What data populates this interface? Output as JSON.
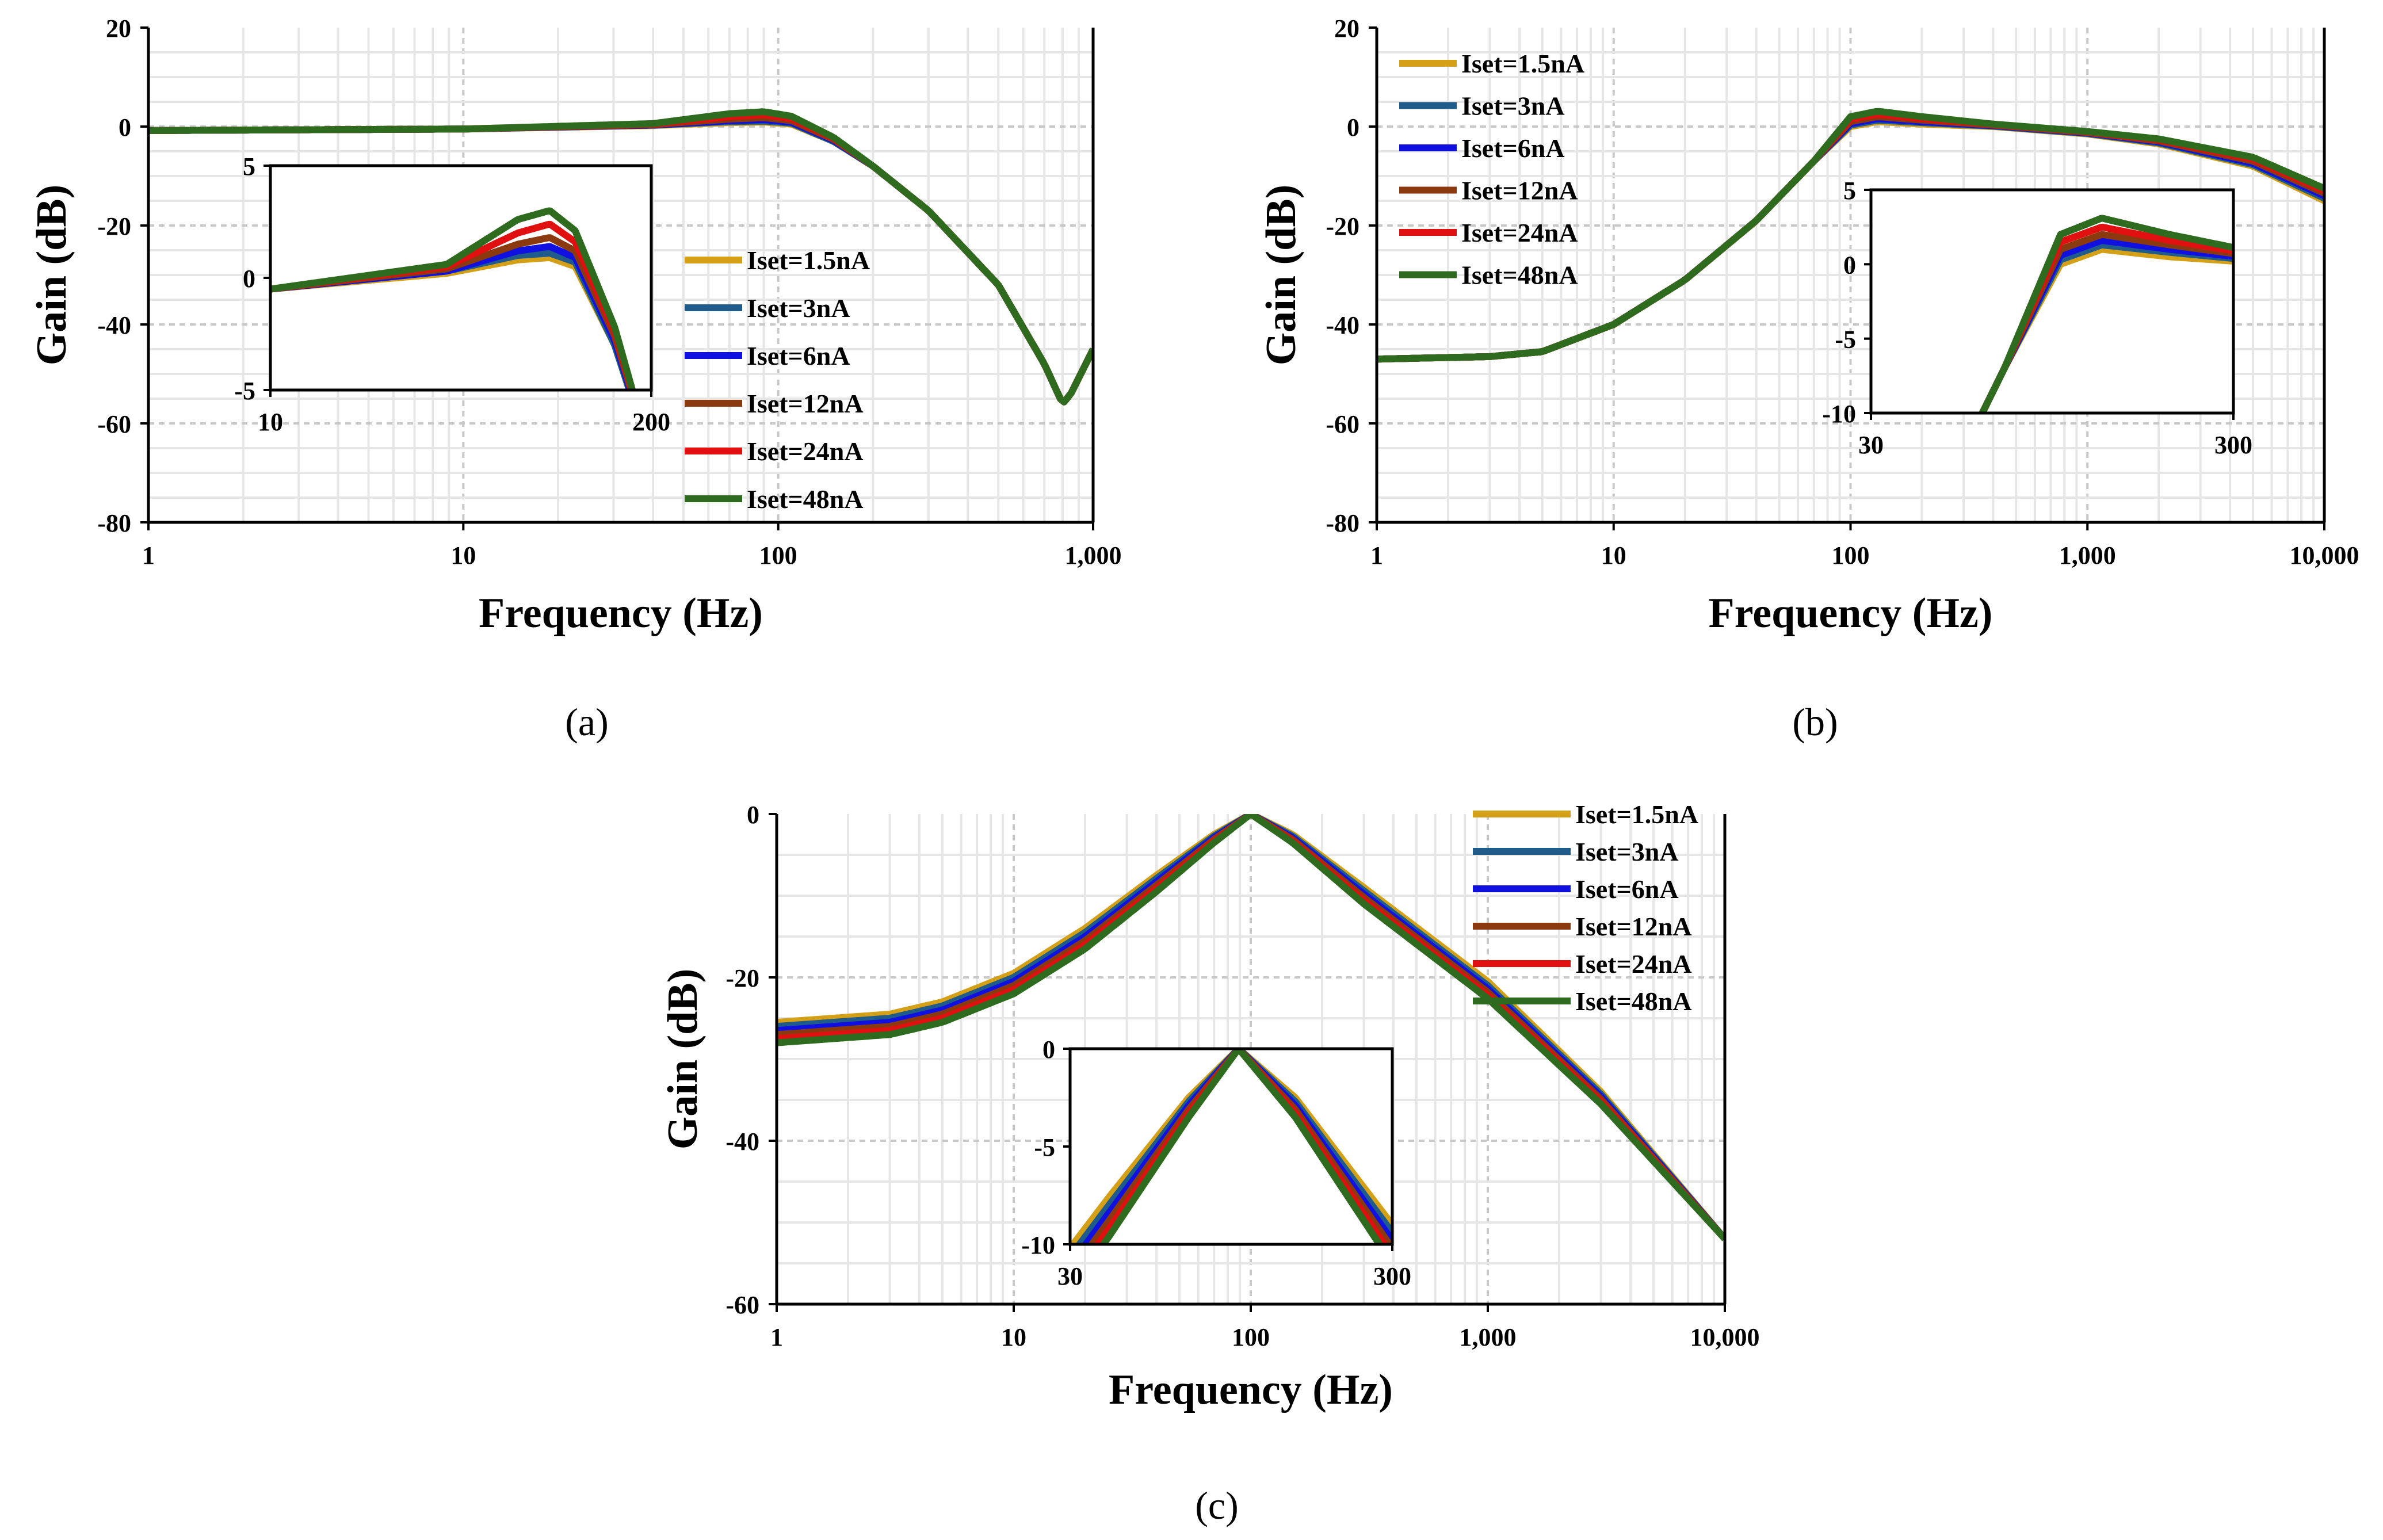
{
  "figure_colors": {
    "grid_major": "#c8c8c8",
    "grid_minor": "#e6e6e6",
    "frame": "#000000"
  },
  "series_legend": [
    {
      "name": "Iset=1.5nA",
      "color": "#D4A017"
    },
    {
      "name": "Iset=3nA",
      "color": "#1F5C8B"
    },
    {
      "name": "Iset=6nA",
      "color": "#1010E0"
    },
    {
      "name": "Iset=12nA",
      "color": "#8B3A10"
    },
    {
      "name": "Iset=24nA",
      "color": "#E01010"
    },
    {
      "name": "Iset=48nA",
      "color": "#2E6B1E"
    }
  ],
  "panel_labels": {
    "a": "(a)",
    "b": "(b)",
    "c": "(c)"
  },
  "chart_data": [
    {
      "id": "a",
      "type": "line",
      "xscale": "log",
      "xlabel": "Frequency (Hz)",
      "ylabel": "Gain (dB)",
      "xlim": [
        1,
        1000
      ],
      "ylim": [
        -80,
        20
      ],
      "xticks": [
        1,
        10,
        100,
        1000
      ],
      "xtick_labels": [
        "1",
        "10",
        "100",
        "1,000"
      ],
      "yticks": [
        20,
        0,
        -20,
        -40,
        -60,
        -80
      ],
      "ytick_labels": [
        "20",
        "0",
        "-20",
        "-40",
        "-60",
        "-80"
      ],
      "legend_position": "lower-right",
      "series": [
        {
          "name": "Iset=1.5nA",
          "x": [
            1,
            10,
            40,
            70,
            90,
            110,
            150,
            200,
            300,
            500,
            700,
            800,
            850,
            1000
          ],
          "y": [
            -0.8,
            -0.5,
            0.2,
            0.8,
            0.9,
            0.5,
            -3,
            -8,
            -17,
            -32,
            -48,
            -56,
            -54,
            -45
          ]
        },
        {
          "name": "Iset=3nA",
          "x": [
            1,
            10,
            40,
            70,
            90,
            110,
            150,
            200,
            300,
            500,
            700,
            800,
            850,
            1000
          ],
          "y": [
            -0.8,
            -0.5,
            0.3,
            1.0,
            1.1,
            0.7,
            -3,
            -8,
            -17,
            -32,
            -48,
            -56,
            -54,
            -45
          ]
        },
        {
          "name": "Iset=6nA",
          "x": [
            1,
            10,
            40,
            70,
            90,
            110,
            150,
            200,
            300,
            500,
            700,
            800,
            850,
            1000
          ],
          "y": [
            -0.8,
            -0.5,
            0.3,
            1.2,
            1.4,
            0.9,
            -2.8,
            -8,
            -17,
            -32,
            -48,
            -56,
            -54,
            -45
          ]
        },
        {
          "name": "Iset=12nA",
          "x": [
            1,
            10,
            40,
            70,
            90,
            110,
            150,
            200,
            300,
            500,
            700,
            800,
            850,
            1000
          ],
          "y": [
            -0.8,
            -0.5,
            0.4,
            1.5,
            1.8,
            1.2,
            -2.6,
            -8,
            -17,
            -32,
            -48,
            -56,
            -54,
            -45
          ]
        },
        {
          "name": "Iset=24nA",
          "x": [
            1,
            10,
            40,
            70,
            90,
            110,
            150,
            200,
            300,
            500,
            700,
            800,
            850,
            1000
          ],
          "y": [
            -0.8,
            -0.5,
            0.5,
            2.0,
            2.4,
            1.6,
            -2.4,
            -8,
            -17,
            -32,
            -48,
            -56,
            -54,
            -45
          ]
        },
        {
          "name": "Iset=48nA",
          "x": [
            1,
            10,
            40,
            70,
            90,
            110,
            150,
            200,
            300,
            500,
            700,
            800,
            850,
            1000
          ],
          "y": [
            -0.8,
            -0.5,
            0.6,
            2.6,
            3.0,
            2.1,
            -2.2,
            -8,
            -17,
            -32,
            -48,
            -56,
            -54,
            -45
          ]
        }
      ],
      "inset": {
        "xscale": "log",
        "xlim": [
          10,
          200
        ],
        "ylim": [
          -5,
          5
        ],
        "xticks": [
          10,
          200
        ],
        "xtick_labels": [
          "10",
          "200"
        ],
        "yticks": [
          5,
          0,
          -5
        ],
        "ytick_labels": [
          "5",
          "0",
          "-5"
        ]
      }
    },
    {
      "id": "b",
      "type": "line",
      "xscale": "log",
      "xlabel": "Frequency (Hz)",
      "ylabel": "Gain (dB)",
      "xlim": [
        1,
        10000
      ],
      "ylim": [
        -80,
        20
      ],
      "xticks": [
        1,
        10,
        100,
        1000,
        10000
      ],
      "xtick_labels": [
        "1",
        "10",
        "100",
        "1,000",
        "10,000"
      ],
      "yticks": [
        20,
        0,
        -20,
        -40,
        -60,
        -80
      ],
      "ytick_labels": [
        "20",
        "0",
        "-20",
        "-40",
        "-60",
        "-80"
      ],
      "legend_position": "upper-left",
      "series": [
        {
          "name": "Iset=1.5nA",
          "x": [
            1,
            3,
            5,
            10,
            20,
            40,
            70,
            100,
            130,
            200,
            400,
            1000,
            2000,
            5000,
            10000
          ],
          "y": [
            -47,
            -46.5,
            -45.5,
            -40,
            -31,
            -19,
            -7,
            0,
            1.0,
            0.5,
            0,
            -1.5,
            -3.5,
            -8,
            -15
          ]
        },
        {
          "name": "Iset=3nA",
          "x": [
            1,
            3,
            5,
            10,
            20,
            40,
            70,
            100,
            130,
            200,
            400,
            1000,
            2000,
            5000,
            10000
          ],
          "y": [
            -47,
            -46.5,
            -45.5,
            -40,
            -31,
            -19,
            -7,
            0.3,
            1.3,
            0.8,
            0.1,
            -1.4,
            -3.3,
            -7.7,
            -14.5
          ]
        },
        {
          "name": "Iset=6nA",
          "x": [
            1,
            3,
            5,
            10,
            20,
            40,
            70,
            100,
            130,
            200,
            400,
            1000,
            2000,
            5000,
            10000
          ],
          "y": [
            -47,
            -46.5,
            -45.5,
            -40,
            -31,
            -19,
            -7,
            0.6,
            1.6,
            1.0,
            0.2,
            -1.3,
            -3.1,
            -7.4,
            -14
          ]
        },
        {
          "name": "Iset=12nA",
          "x": [
            1,
            3,
            5,
            10,
            20,
            40,
            70,
            100,
            130,
            200,
            400,
            1000,
            2000,
            5000,
            10000
          ],
          "y": [
            -47,
            -46.5,
            -45.5,
            -40,
            -31,
            -19,
            -7,
            1.0,
            2.0,
            1.3,
            0.3,
            -1.2,
            -2.9,
            -7.0,
            -13.5
          ]
        },
        {
          "name": "Iset=24nA",
          "x": [
            1,
            3,
            5,
            10,
            20,
            40,
            70,
            100,
            130,
            200,
            400,
            1000,
            2000,
            5000,
            10000
          ],
          "y": [
            -47,
            -46.5,
            -45.5,
            -40,
            -31,
            -19,
            -7,
            1.5,
            2.5,
            1.6,
            0.4,
            -1.1,
            -2.7,
            -6.6,
            -13
          ]
        },
        {
          "name": "Iset=48nA",
          "x": [
            1,
            3,
            5,
            10,
            20,
            40,
            70,
            100,
            130,
            200,
            400,
            1000,
            2000,
            5000,
            10000
          ],
          "y": [
            -47,
            -46.5,
            -45.5,
            -40,
            -31,
            -19,
            -7,
            2.0,
            3.1,
            2.0,
            0.5,
            -1.0,
            -2.5,
            -6.2,
            -12.5
          ]
        }
      ],
      "inset": {
        "xscale": "log",
        "xlim": [
          30,
          300
        ],
        "ylim": [
          -10,
          5
        ],
        "xticks": [
          30,
          300
        ],
        "xtick_labels": [
          "30",
          "300"
        ],
        "yticks": [
          5,
          0,
          -5,
          -10
        ],
        "ytick_labels": [
          "5",
          "0",
          "-5",
          "-10"
        ]
      }
    },
    {
      "id": "c",
      "type": "line",
      "xscale": "log",
      "xlabel": "Frequency (Hz)",
      "ylabel": "Gain (dB)",
      "xlim": [
        1,
        10000
      ],
      "ylim": [
        -60,
        0
      ],
      "xticks": [
        1,
        10,
        100,
        1000,
        10000
      ],
      "xtick_labels": [
        "1",
        "10",
        "100",
        "1,000",
        "10,000"
      ],
      "yticks": [
        0,
        -20,
        -40,
        -60
      ],
      "ytick_labels": [
        "0",
        "-20",
        "-40",
        "-60"
      ],
      "legend_position": "top-right",
      "series": [
        {
          "name": "Iset=1.5nA",
          "x": [
            1,
            3,
            5,
            10,
            20,
            40,
            70,
            100,
            150,
            300,
            1000,
            3000,
            10000
          ],
          "y": [
            -25.5,
            -24.5,
            -23,
            -19.5,
            -14,
            -7.5,
            -2.5,
            0,
            -2.5,
            -9,
            -20.5,
            -34,
            -52
          ]
        },
        {
          "name": "Iset=3nA",
          "x": [
            1,
            3,
            5,
            10,
            20,
            40,
            70,
            100,
            150,
            300,
            1000,
            3000,
            10000
          ],
          "y": [
            -26,
            -25,
            -23.5,
            -20,
            -14.5,
            -7.9,
            -2.7,
            0,
            -2.7,
            -9.4,
            -21,
            -34.3,
            -52
          ]
        },
        {
          "name": "Iset=6nA",
          "x": [
            1,
            3,
            5,
            10,
            20,
            40,
            70,
            100,
            150,
            300,
            1000,
            3000,
            10000
          ],
          "y": [
            -26.5,
            -25.5,
            -24,
            -20.5,
            -15,
            -8.3,
            -2.9,
            0,
            -2.9,
            -9.8,
            -21.4,
            -34.6,
            -52
          ]
        },
        {
          "name": "Iset=12nA",
          "x": [
            1,
            3,
            5,
            10,
            20,
            40,
            70,
            100,
            150,
            300,
            1000,
            3000,
            10000
          ],
          "y": [
            -27,
            -26,
            -24.5,
            -21,
            -15.5,
            -8.7,
            -3.1,
            0,
            -3.1,
            -10.2,
            -21.8,
            -34.9,
            -52
          ]
        },
        {
          "name": "Iset=24nA",
          "x": [
            1,
            3,
            5,
            10,
            20,
            40,
            70,
            100,
            150,
            300,
            1000,
            3000,
            10000
          ],
          "y": [
            -27.5,
            -26.5,
            -25,
            -21.5,
            -16,
            -9.1,
            -3.3,
            0,
            -3.3,
            -10.6,
            -22.2,
            -35.2,
            -52
          ]
        },
        {
          "name": "Iset=48nA",
          "x": [
            1,
            3,
            5,
            10,
            20,
            40,
            70,
            100,
            150,
            300,
            1000,
            3000,
            10000
          ],
          "y": [
            -28,
            -27,
            -25.5,
            -22,
            -16.5,
            -9.5,
            -3.5,
            0,
            -3.5,
            -11,
            -22.6,
            -35.5,
            -52
          ]
        }
      ],
      "inset": {
        "xscale": "log",
        "xlim": [
          30,
          300
        ],
        "ylim": [
          -10,
          0
        ],
        "xticks": [
          30,
          300
        ],
        "xtick_labels": [
          "30",
          "300"
        ],
        "yticks": [
          0,
          -5,
          -10
        ],
        "ytick_labels": [
          "0",
          "-5",
          "-10"
        ]
      }
    }
  ]
}
